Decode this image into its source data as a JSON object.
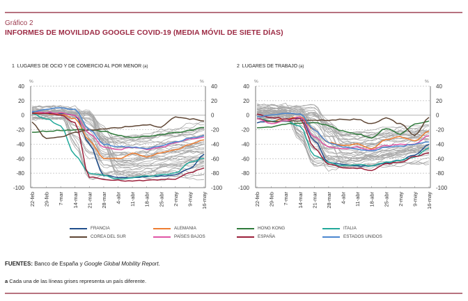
{
  "header": {
    "kicker": "Gráfico 2",
    "title": "INFORMES DE MOVILIDAD GOOGLE COVID-19 (MEDIA MÓVIL DE SIETE DÍAS)"
  },
  "footer": {
    "sources_label": "FUENTES:",
    "sources_text": " Banco de España y ",
    "sources_italic": "Google Global Mobility Report",
    "sources_end": ".",
    "note_label": "a",
    "note_text": " Cada una de las líneas grises representa un país diferente."
  },
  "legend": [
    {
      "name": "FRANCIA",
      "color": "#1f4e8c"
    },
    {
      "name": "ALEMANIA",
      "color": "#ee7d31"
    },
    {
      "name": "HONG KONG",
      "color": "#2e7a3a"
    },
    {
      "name": "ITALIA",
      "color": "#21a89a"
    },
    {
      "name": "COREA DEL SUR",
      "color": "#5e4533"
    },
    {
      "name": "PAÍSES BAJOS",
      "color": "#df55a5"
    },
    {
      "name": "ESPAÑA",
      "color": "#9b1f3a"
    },
    {
      "name": "ESTADOS UNIDOS",
      "color": "#4a86cf"
    }
  ],
  "chart_data": [
    {
      "type": "line",
      "panel_number": "1",
      "title": "LUGARES DE OCIO Y DE COMERCIO AL POR MENOR",
      "title_note": "(a)",
      "ylabel_left": "%",
      "ylabel_right": "%",
      "ylim": [
        -100,
        40
      ],
      "yticks": [
        40,
        20,
        0,
        -20,
        -40,
        -60,
        -80,
        -100
      ],
      "x_ticks": [
        "22-feb",
        "29-feb",
        "7-mar",
        "14-mar",
        "21-mar",
        "28-mar",
        "4-abr",
        "11-abr",
        "18-abr",
        "25-abr",
        "2-may",
        "9-may",
        "16-may"
      ],
      "grid": "horizontal dashed",
      "series": [
        {
          "name": "FRANCIA",
          "values": [
            4,
            3,
            2,
            0,
            -40,
            -83,
            -86,
            -86,
            -85,
            -84,
            -82,
            -74,
            -54
          ]
        },
        {
          "name": "ALEMANIA",
          "values": [
            3,
            2,
            1,
            -5,
            -35,
            -60,
            -60,
            -53,
            -58,
            -52,
            -48,
            -40,
            -34
          ]
        },
        {
          "name": "HONG KONG",
          "values": [
            -24,
            -22,
            -21,
            -20,
            -20,
            -22,
            -28,
            -31,
            -29,
            -27,
            -24,
            -21,
            -17
          ]
        },
        {
          "name": "ITALIA",
          "values": [
            2,
            -5,
            -15,
            -55,
            -80,
            -83,
            -88,
            -86,
            -84,
            -82,
            -80,
            -65,
            -60
          ]
        },
        {
          "name": "COREA DEL SUR",
          "values": [
            -10,
            -32,
            -30,
            -24,
            -20,
            -19,
            -17,
            -15,
            -13,
            -16,
            -3,
            -5,
            -8
          ]
        },
        {
          "name": "PAÍSES BAJOS",
          "values": [
            5,
            4,
            3,
            0,
            -25,
            -44,
            -48,
            -44,
            -47,
            -44,
            -38,
            -33,
            -30
          ]
        },
        {
          "name": "ESPAÑA",
          "values": [
            3,
            2,
            0,
            -10,
            -85,
            -88,
            -90,
            -91,
            -90,
            -89,
            -88,
            -80,
            -73
          ]
        },
        {
          "name": "ESTADOS UNIDOS",
          "values": [
            5,
            8,
            10,
            8,
            -20,
            -40,
            -43,
            -44,
            -46,
            -42,
            -37,
            -32,
            -28
          ]
        }
      ]
    },
    {
      "type": "line",
      "panel_number": "2",
      "title": "LUGARES DE TRABAJO",
      "title_note": "(a)",
      "ylabel_left": "%",
      "ylabel_right": "%",
      "ylim": [
        -100,
        40
      ],
      "yticks": [
        40,
        20,
        0,
        -20,
        -40,
        -60,
        -80,
        -100
      ],
      "x_ticks": [
        "22-feb",
        "29-feb",
        "7-mar",
        "14-mar",
        "21-mar",
        "28-mar",
        "4-abr",
        "11-abr",
        "18-abr",
        "25-abr",
        "2-may",
        "9-may",
        "16-may"
      ],
      "grid": "horizontal dashed",
      "series": [
        {
          "name": "FRANCIA",
          "values": [
            -10,
            -8,
            -5,
            -3,
            -35,
            -65,
            -68,
            -70,
            -70,
            -66,
            -62,
            -55,
            -40
          ]
        },
        {
          "name": "ALEMANIA",
          "values": [
            -5,
            -8,
            -5,
            -2,
            -20,
            -38,
            -42,
            -40,
            -47,
            -34,
            -30,
            -35,
            -22
          ]
        },
        {
          "name": "HONG KONG",
          "values": [
            -18,
            -16,
            -12,
            -11,
            -10,
            -14,
            -22,
            -26,
            -31,
            -18,
            -26,
            -12,
            -8
          ]
        },
        {
          "name": "ITALIA",
          "values": [
            -5,
            -8,
            -8,
            -15,
            -55,
            -65,
            -70,
            -68,
            -70,
            -65,
            -62,
            -58,
            -45
          ]
        },
        {
          "name": "COREA DEL SUR",
          "values": [
            -5,
            -9,
            -8,
            -8,
            -7,
            -7,
            -6,
            -6,
            -12,
            -4,
            -12,
            -28,
            -3
          ]
        },
        {
          "name": "PAÍSES BAJOS",
          "values": [
            -5,
            -12,
            -8,
            -2,
            -30,
            -44,
            -46,
            -44,
            -48,
            -42,
            -40,
            -40,
            -28
          ]
        },
        {
          "name": "ESPAÑA",
          "values": [
            2,
            -3,
            -5,
            -5,
            -45,
            -67,
            -72,
            -73,
            -76,
            -67,
            -65,
            -57,
            -52
          ]
        },
        {
          "name": "ESTADOS UNIDOS",
          "values": [
            -2,
            0,
            2,
            2,
            -20,
            -38,
            -44,
            -47,
            -49,
            -44,
            -43,
            -40,
            -37
          ]
        }
      ]
    }
  ]
}
